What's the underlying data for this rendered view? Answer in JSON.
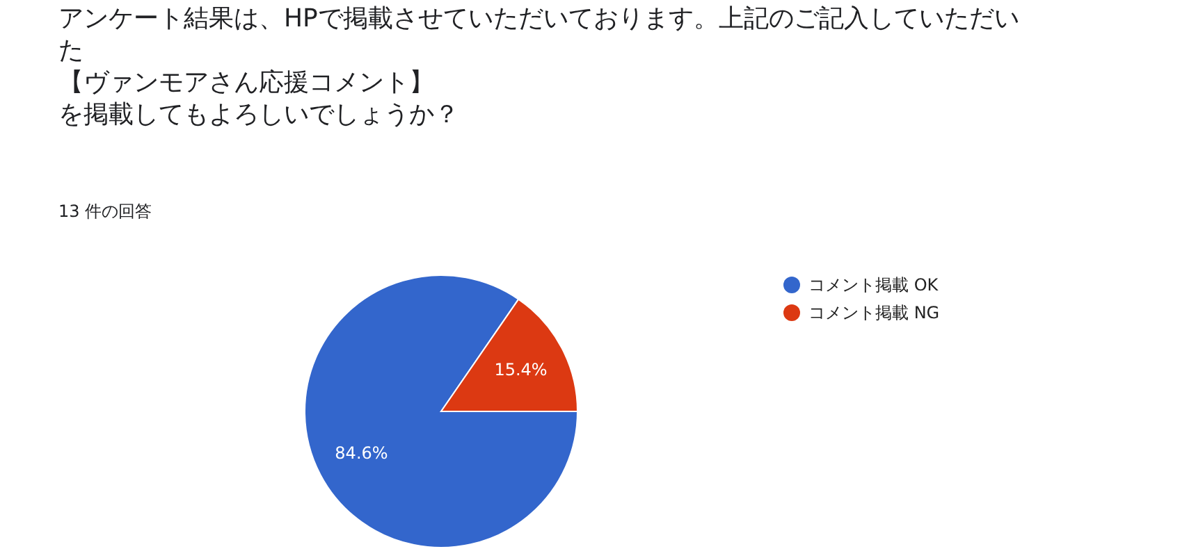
{
  "chart_data": {
    "type": "pie",
    "title": "アンケート結果は、HPで掲載させていただいております。上記のご記入していただいた",
    "subtitle": "13 件の回答",
    "annotations": [
      "【ヴァンモアさん応援コメント】",
      "を掲載してもよろしいでしょうか？"
    ],
    "categories": [
      "コメント掲載 OK",
      "コメント掲載 NG"
    ],
    "values": [
      84.6,
      15.4
    ],
    "colors": [
      "#3366cc",
      "#dc3912"
    ],
    "value_labels": [
      "84.6%",
      "15.4%"
    ],
    "legend": "right"
  }
}
